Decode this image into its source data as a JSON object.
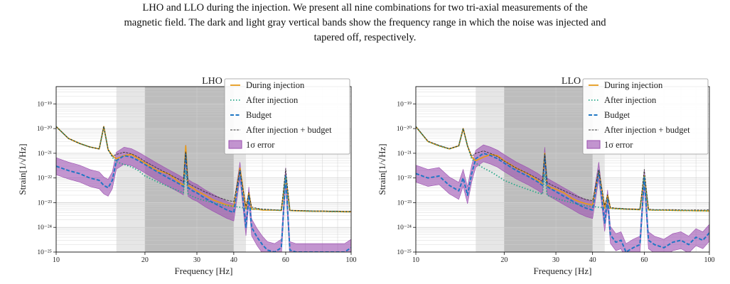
{
  "caption": {
    "line1": "LHO and LLO during the injection. We present all nine combinations for two tri-axial measurements of the",
    "line2": "magnetic field. The dark and light gray vertical bands show the frequency range in which the noise was injected and",
    "line3": "tapered off, respectively."
  },
  "colors": {
    "during": "#e69a1c",
    "after": "#2aa889",
    "budget": "#1f77c4",
    "sum": "#333333",
    "error": "#9b4fb0",
    "band_dark": "#bdbdbd",
    "band_light": "#e6e6e6"
  },
  "chart_data": [
    {
      "type": "line",
      "title": "LHO",
      "xlabel": "Frequency [Hz]",
      "ylabel": "Strain[1/√Hz]",
      "xscale": "log",
      "yscale": "log",
      "xlim": [
        10,
        100
      ],
      "ylim": [
        1e-25,
        5e-19
      ],
      "xticks": [
        10,
        20,
        30,
        40,
        60,
        100
      ],
      "xtick_labels": [
        "10",
        "20",
        "30",
        "40",
        "60",
        "100"
      ],
      "yticks": [
        1e-25,
        1e-24,
        1e-23,
        1e-22,
        1e-21,
        1e-20,
        1e-19
      ],
      "ytick_labels": [
        "10⁻²⁵",
        "10⁻²⁴",
        "10⁻²³",
        "10⁻²²",
        "10⁻²¹",
        "10⁻²⁰",
        "10⁻¹⁹"
      ],
      "bands": [
        {
          "kind": "light",
          "x0": 16,
          "x1": 20
        },
        {
          "kind": "dark",
          "x0": 20,
          "x1": 40
        },
        {
          "kind": "light",
          "x0": 40,
          "x1": 44
        }
      ],
      "legend": [
        "During injection",
        "After injection",
        "Budget",
        "After injection + budget",
        "1σ error"
      ],
      "legend_position": "top-right",
      "grid": true,
      "x": [
        10,
        11,
        12,
        13,
        14,
        14.5,
        15,
        15.5,
        16,
        17,
        18,
        19,
        20,
        22,
        24,
        26,
        27,
        27.5,
        28,
        29,
        30,
        32,
        34,
        36,
        38,
        40,
        42,
        44,
        45,
        46,
        48,
        50,
        52,
        55,
        58,
        60,
        62,
        65,
        70,
        75,
        80,
        85,
        90,
        95,
        100
      ],
      "series": [
        {
          "name": "During injection",
          "values": [
            1.2e-20,
            4e-21,
            2.5e-21,
            1.8e-21,
            1.5e-21,
            1.2e-20,
            1.4e-21,
            8e-22,
            6e-22,
            8e-22,
            9e-22,
            6e-22,
            4e-22,
            2e-22,
            1.5e-22,
            7e-23,
            5e-23,
            2e-21,
            5e-23,
            4e-23,
            3e-23,
            2e-23,
            1.3e-23,
            1e-23,
            8e-24,
            7e-24,
            2.5e-22,
            5.5e-24,
            2.5e-23,
            5.5e-24,
            5.5e-24,
            5e-24,
            5e-24,
            5e-24,
            4.8e-24,
            1.2e-22,
            4.8e-24,
            4.7e-24,
            4.6e-24,
            4.5e-24,
            4.5e-24,
            4.4e-24,
            4.4e-24,
            4.3e-24,
            4.3e-24
          ]
        },
        {
          "name": "After injection",
          "values": [
            1.2e-20,
            4e-21,
            2.5e-21,
            1.8e-21,
            1.5e-21,
            1.2e-20,
            1.4e-21,
            7e-22,
            4.5e-22,
            3.5e-22,
            2.8e-22,
            2e-22,
            1.2e-22,
            7e-23,
            4.5e-23,
            3e-23,
            2.5e-23,
            2e-22,
            2.2e-23,
            1.8e-23,
            1.5e-23,
            1.2e-23,
            1e-23,
            8.5e-24,
            7.5e-24,
            7e-24,
            6.5e-24,
            6e-24,
            5.8e-24,
            5.6e-24,
            5.5e-24,
            5.3e-24,
            5.2e-24,
            5e-24,
            4.9e-24,
            1.2e-22,
            4.8e-24,
            4.7e-24,
            4.6e-24,
            4.5e-24,
            4.5e-24,
            4.4e-24,
            4.4e-24,
            4.3e-24,
            4.3e-24
          ]
        },
        {
          "name": "Budget",
          "values": [
            3e-22,
            2e-22,
            1.5e-22,
            1e-22,
            8e-23,
            5e-23,
            4e-23,
            8e-23,
            5e-22,
            8e-22,
            7e-22,
            5e-22,
            3.5e-22,
            1.8e-22,
            1e-22,
            6e-23,
            4.5e-23,
            1e-21,
            4e-23,
            3e-23,
            2.5e-23,
            1.5e-23,
            1e-23,
            7e-24,
            5e-24,
            4e-24,
            2e-22,
            1e-24,
            2e-23,
            1e-24,
            4e-25,
            2e-25,
            1.2e-25,
            1e-25,
            1.5e-25,
            1.2e-22,
            1.2e-25,
            1e-25,
            1e-25,
            1e-25,
            1e-25,
            1e-25,
            1e-25,
            1e-25,
            1.5e-25
          ]
        },
        {
          "name": "After injection + budget",
          "values": [
            1.2e-20,
            4e-21,
            2.5e-21,
            1.8e-21,
            1.5e-21,
            1.2e-20,
            1.4e-21,
            7.5e-22,
            9e-22,
            1.1e-21,
            9.5e-22,
            7e-22,
            4.7e-22,
            2.5e-22,
            1.45e-22,
            9e-23,
            7e-23,
            1.2e-21,
            6.2e-23,
            4.8e-23,
            4e-23,
            2.7e-23,
            2e-23,
            1.55e-23,
            1.25e-23,
            1.1e-23,
            2.1e-22,
            7e-24,
            2.6e-23,
            6.6e-24,
            5.9e-24,
            5.5e-24,
            5.3e-24,
            5.1e-24,
            5e-24,
            2.4e-22,
            4.9e-24,
            4.8e-24,
            4.7e-24,
            4.6e-24,
            4.6e-24,
            4.5e-24,
            4.5e-24,
            4.4e-24,
            4.4e-24
          ]
        }
      ]
    },
    {
      "type": "line",
      "title": "LLO",
      "xlabel": "Frequency [Hz]",
      "ylabel": "Strain[1/√Hz]",
      "xscale": "log",
      "yscale": "log",
      "xlim": [
        10,
        100
      ],
      "ylim": [
        1e-25,
        5e-19
      ],
      "xticks": [
        10,
        20,
        30,
        40,
        60,
        100
      ],
      "xtick_labels": [
        "10",
        "20",
        "30",
        "40",
        "60",
        "100"
      ],
      "yticks": [
        1e-25,
        1e-24,
        1e-23,
        1e-22,
        1e-21,
        1e-20,
        1e-19
      ],
      "ytick_labels": [
        "10⁻²⁵",
        "10⁻²⁴",
        "10⁻²³",
        "10⁻²²",
        "10⁻²¹",
        "10⁻²⁰",
        "10⁻¹⁹"
      ],
      "bands": [
        {
          "kind": "light",
          "x0": 16,
          "x1": 20
        },
        {
          "kind": "dark",
          "x0": 20,
          "x1": 40
        },
        {
          "kind": "light",
          "x0": 40,
          "x1": 44
        }
      ],
      "legend": [
        "During injection",
        "After injection",
        "Budget",
        "After injection + budget",
        "1σ error"
      ],
      "legend_position": "top-right",
      "grid": true,
      "x": [
        10,
        11,
        12,
        13,
        14,
        14.5,
        15,
        15.5,
        16,
        17,
        18,
        19,
        20,
        22,
        24,
        26,
        27,
        27.5,
        28,
        29,
        30,
        32,
        34,
        36,
        38,
        40,
        42,
        44,
        45,
        46,
        48,
        50,
        52,
        55,
        58,
        60,
        62,
        65,
        70,
        75,
        80,
        85,
        90,
        95,
        100
      ],
      "series": [
        {
          "name": "During injection",
          "values": [
            1.2e-20,
            3e-21,
            2e-21,
            1.5e-21,
            2e-21,
            1e-20,
            2e-21,
            7e-22,
            5e-22,
            7e-22,
            9e-22,
            8e-22,
            5e-22,
            2.5e-22,
            1.5e-22,
            8e-23,
            6e-23,
            1e-21,
            5e-23,
            4e-23,
            3.5e-23,
            2.5e-23,
            1.5e-23,
            1.1e-23,
            9e-24,
            8e-24,
            2e-22,
            6e-24,
            2e-23,
            6e-24,
            5.8e-24,
            5.6e-24,
            5.5e-24,
            5.4e-24,
            5.2e-24,
            1.2e-22,
            5.1e-24,
            5e-24,
            5e-24,
            4.9e-24,
            4.8e-24,
            4.8e-24,
            4.7e-24,
            4.7e-24,
            4.6e-24
          ]
        },
        {
          "name": "After injection",
          "values": [
            1.2e-20,
            3e-21,
            2e-21,
            1.5e-21,
            2e-21,
            1e-20,
            2e-21,
            6e-22,
            4e-22,
            2.5e-22,
            1.8e-22,
            1.2e-22,
            8e-23,
            5e-23,
            3.5e-23,
            2.5e-23,
            2.2e-23,
            1.5e-22,
            2e-23,
            1.7e-23,
            1.5e-23,
            1.2e-23,
            1e-23,
            8.5e-24,
            7.5e-24,
            7e-24,
            6.5e-24,
            6.2e-24,
            6e-24,
            5.9e-24,
            5.7e-24,
            5.6e-24,
            5.5e-24,
            5.3e-24,
            5.2e-24,
            1.2e-22,
            5.1e-24,
            5e-24,
            5e-24,
            4.9e-24,
            4.8e-24,
            4.8e-24,
            4.7e-24,
            4.7e-24,
            4.6e-24
          ]
        },
        {
          "name": "Budget",
          "values": [
            1.5e-22,
            1e-22,
            1.2e-22,
            5e-23,
            3e-23,
            1e-22,
            2e-23,
            1.5e-22,
            6e-22,
            1e-21,
            8e-22,
            6e-22,
            4e-22,
            2e-22,
            1.2e-22,
            7e-23,
            5e-23,
            8e-22,
            4.5e-23,
            3.5e-23,
            2.8e-23,
            1.8e-23,
            1.2e-23,
            8e-24,
            6e-24,
            5e-24,
            2e-22,
            1.5e-24,
            1.5e-23,
            5e-25,
            2.5e-25,
            3e-25,
            1e-25,
            1.5e-25,
            2e-25,
            1e-22,
            3e-25,
            2e-25,
            1.5e-25,
            2.5e-25,
            3e-25,
            2e-25,
            4e-25,
            3e-25,
            6e-25
          ]
        },
        {
          "name": "After injection + budget",
          "values": [
            1.2e-20,
            3.1e-21,
            2.1e-21,
            1.55e-21,
            2e-21,
            1e-20,
            2e-21,
            7.5e-22,
            1e-21,
            1.25e-21,
            9.8e-22,
            7.2e-22,
            4.8e-22,
            2.5e-22,
            1.55e-22,
            9.5e-23,
            7.2e-23,
            9.5e-22,
            6.5e-23,
            5.2e-23,
            4.3e-23,
            3e-23,
            2.2e-23,
            1.65e-23,
            1.35e-23,
            1.2e-23,
            2.1e-22,
            7.7e-24,
            2.1e-23,
            6.4e-24,
            6e-24,
            5.9e-24,
            5.6e-24,
            5.5e-24,
            5.4e-24,
            2.2e-22,
            5.4e-24,
            5.2e-24,
            5.2e-24,
            5.2e-24,
            5.1e-24,
            5e-24,
            5.1e-24,
            5e-24,
            5.2e-24
          ]
        }
      ]
    }
  ]
}
